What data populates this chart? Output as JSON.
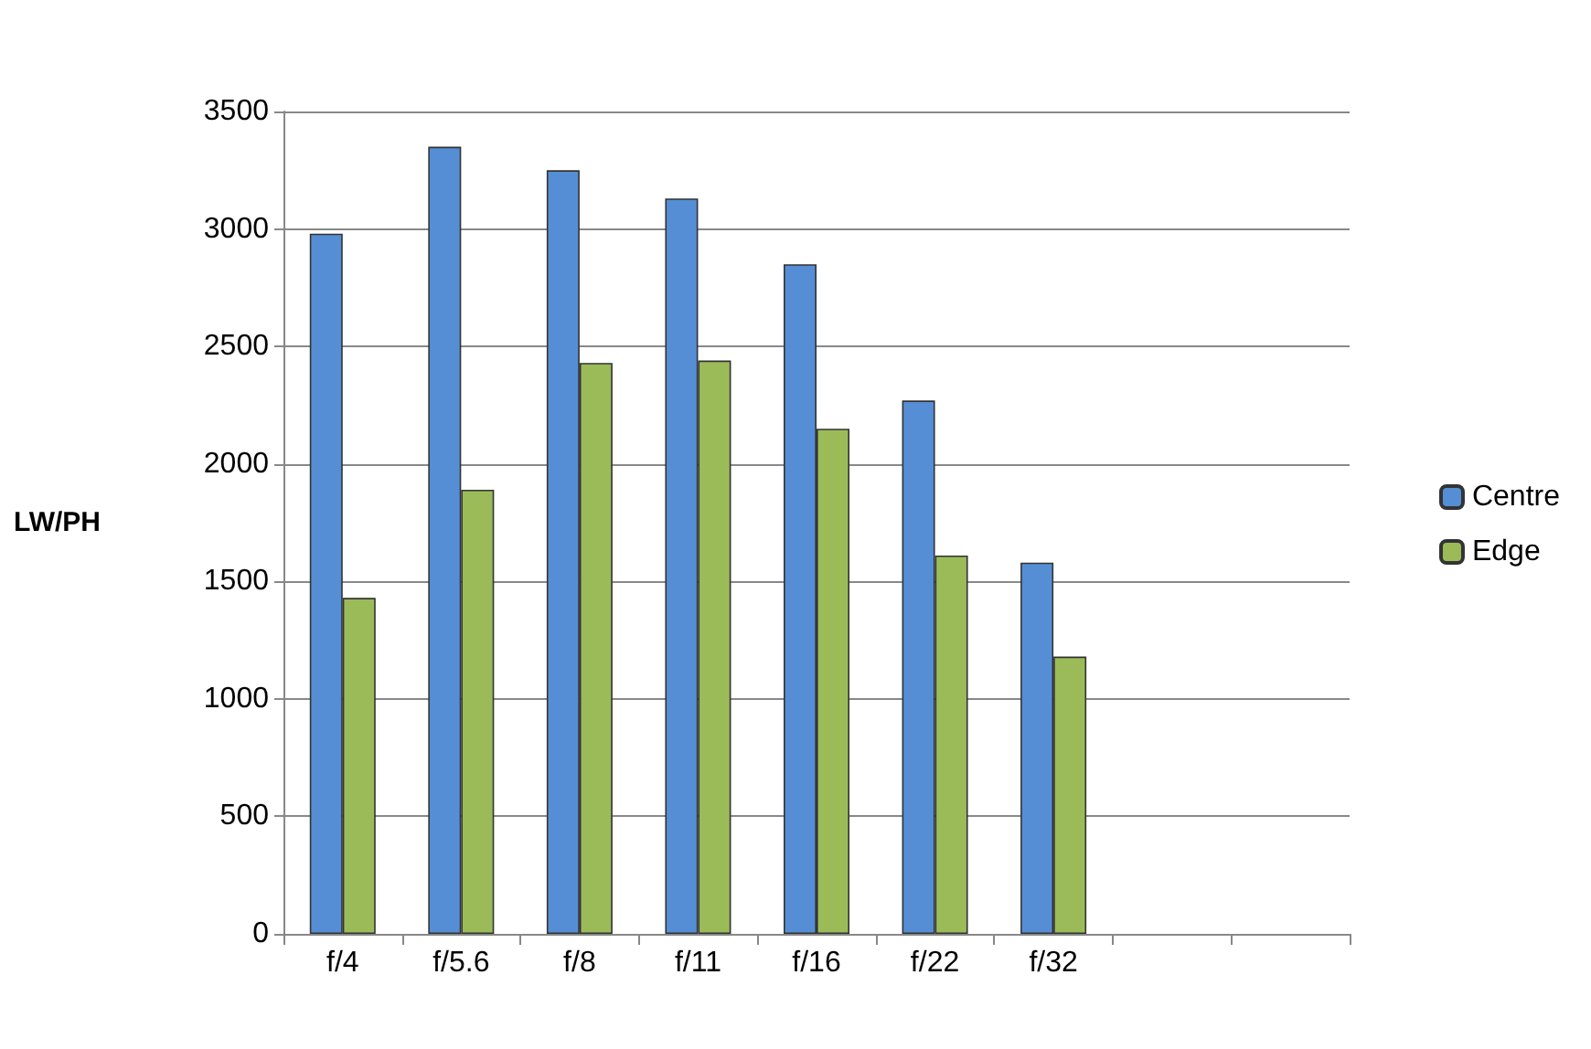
{
  "chart_data": {
    "type": "bar",
    "ylabel": "LW/PH",
    "categories": [
      "f/4",
      "f/5.6",
      "f/8",
      "f/11",
      "f/16",
      "f/22",
      "f/32",
      null,
      null
    ],
    "series": [
      {
        "name": "Centre",
        "color": "#558ed5",
        "values": [
          2980,
          3350,
          3250,
          3130,
          2850,
          2270,
          1580,
          null,
          null
        ]
      },
      {
        "name": "Edge",
        "color": "#9bbb59",
        "values": [
          1430,
          1890,
          2430,
          2440,
          2150,
          1610,
          1180,
          null,
          null
        ]
      }
    ],
    "ylim": [
      0,
      3500
    ],
    "yticks": [
      0,
      500,
      1000,
      1500,
      2000,
      2500,
      3000,
      3500
    ],
    "grid": "y",
    "legend": "right"
  }
}
